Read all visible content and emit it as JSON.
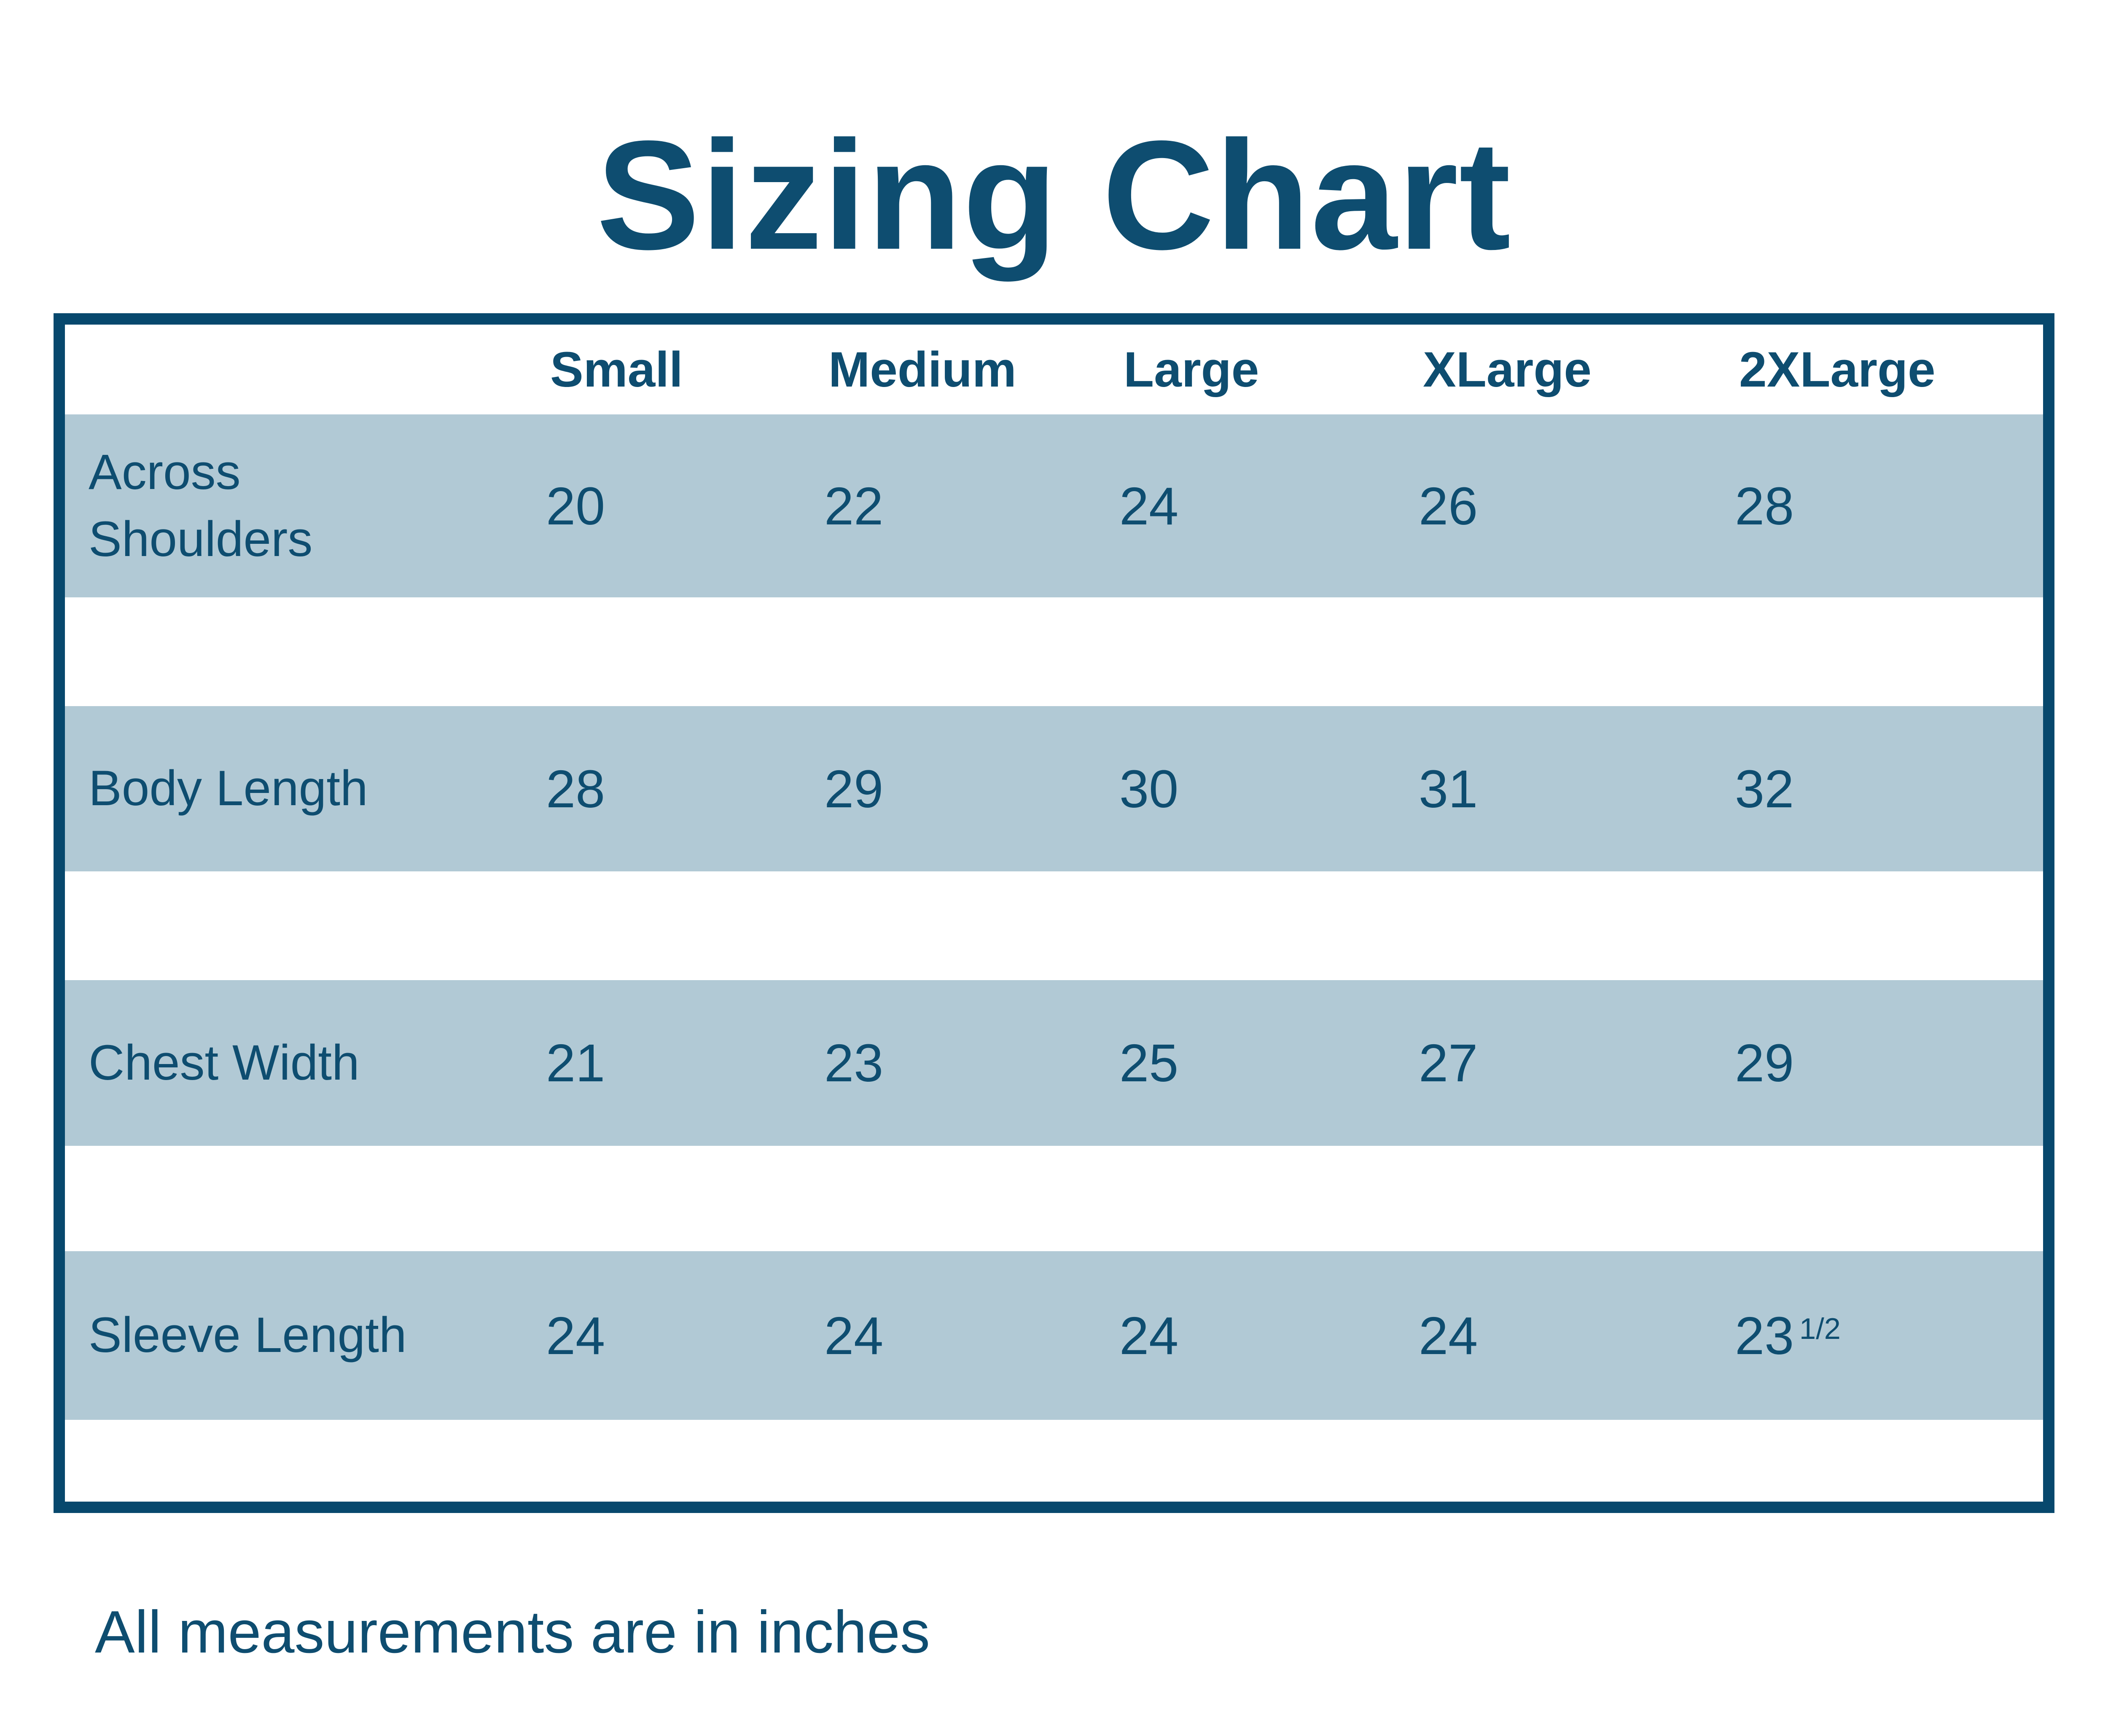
{
  "page": {
    "title": "Sizing Chart",
    "note": "All measurements are in inches"
  },
  "colors": {
    "text": "#0e4d70",
    "border": "#07486d",
    "row_band": "#b1c9d5",
    "background": "#ffffff"
  },
  "table": {
    "columns": [
      "Small",
      "Medium",
      "Large",
      "XLarge",
      "2XLarge"
    ],
    "rows": [
      {
        "label": "Across\nShoulders",
        "values": [
          "20",
          "22",
          "24",
          "26",
          "28"
        ]
      },
      {
        "label": "Body Length",
        "values": [
          "28",
          "29",
          "30",
          "31",
          "32"
        ]
      },
      {
        "label": "Chest Width",
        "values": [
          "21",
          "23",
          "25",
          "27",
          "29"
        ]
      },
      {
        "label": "Sleeve Length",
        "values": [
          "24",
          "24",
          "24",
          "24",
          "23"
        ],
        "sup": "1/2"
      }
    ]
  },
  "chart_data": {
    "type": "table",
    "title": "Sizing Chart",
    "columns": [
      "",
      "Small",
      "Medium",
      "Large",
      "XLarge",
      "2XLarge"
    ],
    "rows": [
      [
        "Across Shoulders",
        20,
        22,
        24,
        26,
        28
      ],
      [
        "Body Length",
        28,
        29,
        30,
        31,
        32
      ],
      [
        "Chest Width",
        21,
        23,
        25,
        27,
        29
      ],
      [
        "Sleeve Length",
        24,
        24,
        24,
        24,
        23.5
      ]
    ],
    "units": "inches",
    "note": "All measurements are in inches",
    "style": {
      "banded_rows": true,
      "band_color": "#b1c9d5",
      "frame_color": "#07486d",
      "text_color": "#0e4d70"
    }
  }
}
